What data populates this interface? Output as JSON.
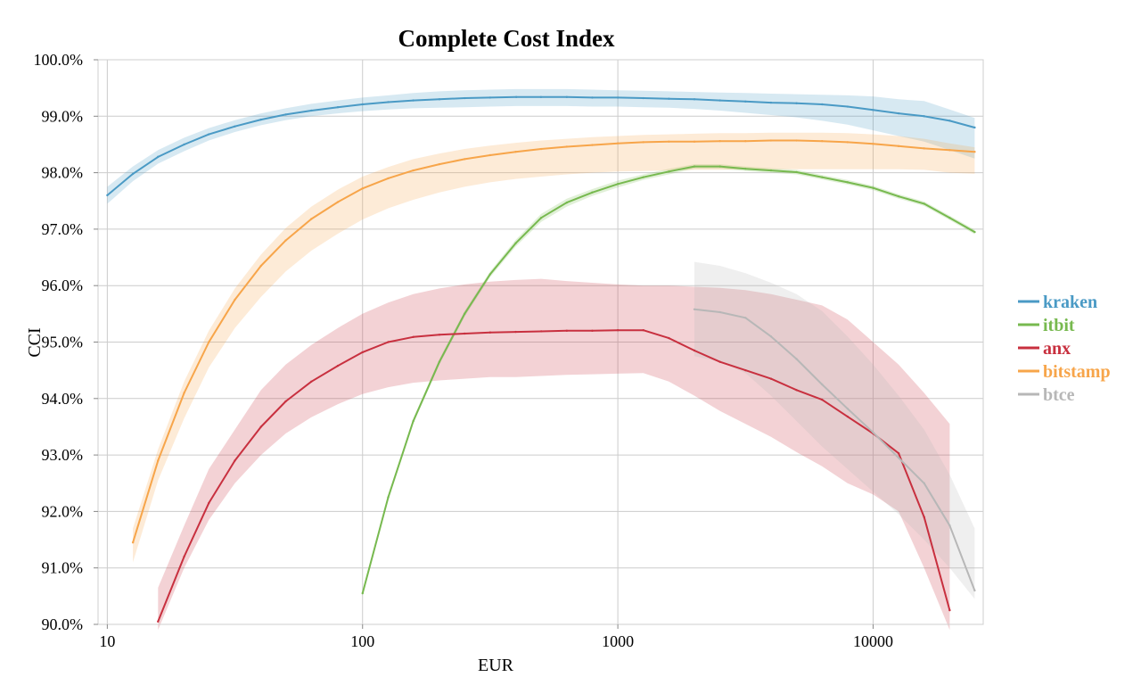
{
  "chart_data": {
    "type": "line",
    "title": "Complete Cost Index",
    "xlabel": "EUR",
    "ylabel": "CCI",
    "xscale": "log",
    "xlim": [
      9.2,
      27000
    ],
    "ylim": [
      90.0,
      100.0
    ],
    "x_ticks": [
      10,
      100,
      1000,
      10000
    ],
    "x_tick_labels": [
      "10",
      "100",
      "1000",
      "10000"
    ],
    "y_ticks": [
      90,
      91,
      92,
      93,
      94,
      95,
      96,
      97,
      98,
      99,
      100
    ],
    "y_tick_labels": [
      "90.0%",
      "91.0%",
      "92.0%",
      "93.0%",
      "94.0%",
      "95.0%",
      "96.0%",
      "97.0%",
      "98.0%",
      "99.0%",
      "100.0%"
    ],
    "grid": true,
    "legend_position": "right",
    "series": [
      {
        "name": "kraken",
        "color": "#4a9ac5",
        "x": [
          10,
          12.6,
          15.8,
          20,
          25,
          31.6,
          40,
          50,
          63,
          80,
          100,
          126,
          158,
          200,
          251,
          316,
          400,
          500,
          631,
          794,
          1000,
          1259,
          1585,
          1995,
          2512,
          3162,
          3981,
          5012,
          6310,
          7943,
          10000,
          12589,
          15849,
          19953,
          25000
        ],
        "values": [
          97.6,
          97.98,
          98.28,
          98.5,
          98.68,
          98.82,
          98.94,
          99.03,
          99.1,
          99.16,
          99.21,
          99.25,
          99.28,
          99.3,
          99.32,
          99.33,
          99.34,
          99.34,
          99.34,
          99.33,
          99.33,
          99.32,
          99.31,
          99.3,
          99.28,
          99.26,
          99.24,
          99.23,
          99.21,
          99.17,
          99.11,
          99.05,
          99.0,
          98.92,
          98.8
        ],
        "band_lower": [
          97.45,
          97.85,
          98.16,
          98.38,
          98.57,
          98.72,
          98.84,
          98.93,
          99.0,
          99.05,
          99.09,
          99.12,
          99.14,
          99.15,
          99.16,
          99.17,
          99.18,
          99.18,
          99.18,
          99.17,
          99.17,
          99.16,
          99.15,
          99.13,
          99.1,
          99.06,
          99.02,
          98.98,
          98.92,
          98.85,
          98.75,
          98.65,
          98.55,
          98.4,
          98.25
        ],
        "band_upper": [
          97.75,
          98.11,
          98.4,
          98.62,
          98.79,
          98.93,
          99.05,
          99.14,
          99.22,
          99.28,
          99.33,
          99.37,
          99.41,
          99.44,
          99.46,
          99.47,
          99.48,
          99.48,
          99.48,
          99.47,
          99.46,
          99.45,
          99.44,
          99.43,
          99.42,
          99.41,
          99.4,
          99.39,
          99.38,
          99.37,
          99.35,
          99.3,
          99.27,
          99.12,
          98.97
        ]
      },
      {
        "name": "itbit",
        "color": "#77b94f",
        "x": [
          100,
          126,
          158,
          200,
          251,
          316,
          398,
          501,
          631,
          794,
          1000,
          1259,
          1585,
          1995,
          2512,
          3162,
          3981,
          5012,
          6310,
          7943,
          10000,
          12589,
          15849,
          19953,
          25000
        ],
        "values": [
          90.55,
          92.25,
          93.6,
          94.65,
          95.5,
          96.2,
          96.75,
          97.2,
          97.47,
          97.65,
          97.8,
          97.92,
          98.02,
          98.11,
          98.11,
          98.07,
          98.04,
          98.01,
          97.92,
          97.83,
          97.73,
          97.58,
          97.45,
          97.2,
          96.95
        ],
        "band_lower": [
          90.5,
          92.2,
          93.55,
          94.6,
          95.45,
          96.15,
          96.69,
          97.13,
          97.4,
          97.59,
          97.74,
          97.87,
          97.97,
          98.07,
          98.07,
          98.03,
          98.0,
          97.97,
          97.88,
          97.79,
          97.69,
          97.54,
          97.41,
          97.16,
          96.91
        ],
        "band_upper": [
          90.6,
          92.3,
          93.65,
          94.7,
          95.55,
          96.25,
          96.81,
          97.27,
          97.54,
          97.71,
          97.86,
          97.97,
          98.07,
          98.15,
          98.15,
          98.11,
          98.08,
          98.05,
          97.96,
          97.87,
          97.77,
          97.62,
          97.49,
          97.24,
          96.99
        ]
      },
      {
        "name": "anx",
        "color": "#c8303f",
        "x": [
          15.8,
          20,
          25,
          31.6,
          40,
          50,
          63,
          80,
          100,
          126,
          158,
          200,
          251,
          316,
          398,
          501,
          631,
          794,
          1000,
          1259,
          1585,
          1995,
          2512,
          3162,
          3981,
          5012,
          6310,
          7943,
          10000,
          12589,
          15849,
          19953
        ],
        "values": [
          90.05,
          91.2,
          92.15,
          92.9,
          93.5,
          93.95,
          94.3,
          94.58,
          94.82,
          95.0,
          95.09,
          95.13,
          95.15,
          95.17,
          95.18,
          95.19,
          95.2,
          95.2,
          95.21,
          95.21,
          95.07,
          94.85,
          94.65,
          94.5,
          94.35,
          94.15,
          93.98,
          93.68,
          93.38,
          93.03,
          91.9,
          90.25
        ],
        "band_lower": [
          89.9,
          91.0,
          91.85,
          92.5,
          93.0,
          93.38,
          93.67,
          93.9,
          94.08,
          94.2,
          94.28,
          94.32,
          94.35,
          94.38,
          94.38,
          94.4,
          94.42,
          94.43,
          94.44,
          94.45,
          94.3,
          94.05,
          93.78,
          93.55,
          93.32,
          93.05,
          92.8,
          92.5,
          92.3,
          92.0,
          91.0,
          89.9
        ],
        "band_upper": [
          90.65,
          91.75,
          92.75,
          93.45,
          94.15,
          94.6,
          94.95,
          95.25,
          95.5,
          95.7,
          95.85,
          95.95,
          96.02,
          96.07,
          96.1,
          96.12,
          96.08,
          96.05,
          96.02,
          96.0,
          96.0,
          95.98,
          95.96,
          95.92,
          95.85,
          95.75,
          95.65,
          95.4,
          95.0,
          94.6,
          94.1,
          93.55
        ]
      },
      {
        "name": "bitstamp",
        "color": "#f7a54a",
        "x": [
          12.6,
          15.8,
          20,
          25,
          31.6,
          40,
          50,
          63,
          80,
          100,
          126,
          158,
          200,
          251,
          316,
          398,
          501,
          631,
          794,
          1000,
          1259,
          1585,
          1995,
          2512,
          3162,
          3981,
          5012,
          6310,
          7943,
          10000,
          12589,
          15849,
          19953,
          25000
        ],
        "values": [
          91.45,
          92.9,
          94.1,
          95.0,
          95.75,
          96.35,
          96.8,
          97.18,
          97.48,
          97.72,
          97.9,
          98.04,
          98.15,
          98.24,
          98.31,
          98.37,
          98.42,
          98.46,
          98.49,
          98.52,
          98.54,
          98.55,
          98.55,
          98.56,
          98.56,
          98.57,
          98.57,
          98.56,
          98.54,
          98.51,
          98.47,
          98.43,
          98.4,
          98.37
        ],
        "band_lower": [
          91.1,
          92.55,
          93.65,
          94.55,
          95.25,
          95.8,
          96.25,
          96.62,
          96.92,
          97.17,
          97.37,
          97.52,
          97.65,
          97.75,
          97.83,
          97.89,
          97.93,
          97.97,
          98.0,
          98.02,
          98.03,
          98.04,
          98.05,
          98.05,
          98.06,
          98.06,
          98.06,
          98.06,
          98.06,
          98.06,
          98.06,
          98.05,
          98.0,
          97.98
        ],
        "band_upper": [
          91.7,
          93.1,
          94.3,
          95.2,
          95.95,
          96.55,
          97.02,
          97.4,
          97.7,
          97.93,
          98.1,
          98.24,
          98.34,
          98.42,
          98.48,
          98.53,
          98.57,
          98.6,
          98.63,
          98.65,
          98.67,
          98.68,
          98.69,
          98.7,
          98.7,
          98.71,
          98.71,
          98.71,
          98.7,
          98.68,
          98.65,
          98.6,
          98.52,
          98.45
        ]
      },
      {
        "name": "btce",
        "color": "#b7b7b7",
        "x": [
          1995,
          2512,
          3162,
          3981,
          5012,
          6310,
          7943,
          10000,
          12589,
          15849,
          19953,
          25000
        ],
        "values": [
          95.58,
          95.53,
          95.43,
          95.1,
          94.7,
          94.25,
          93.82,
          93.4,
          92.95,
          92.5,
          91.75,
          90.6
        ],
        "band_lower": [
          94.75,
          94.65,
          94.45,
          94.05,
          93.6,
          93.15,
          92.75,
          92.35,
          91.95,
          91.5,
          91.0,
          90.45
        ],
        "band_upper": [
          96.42,
          96.35,
          96.22,
          96.05,
          95.85,
          95.55,
          95.1,
          94.6,
          94.05,
          93.45,
          92.65,
          91.7
        ]
      }
    ]
  }
}
